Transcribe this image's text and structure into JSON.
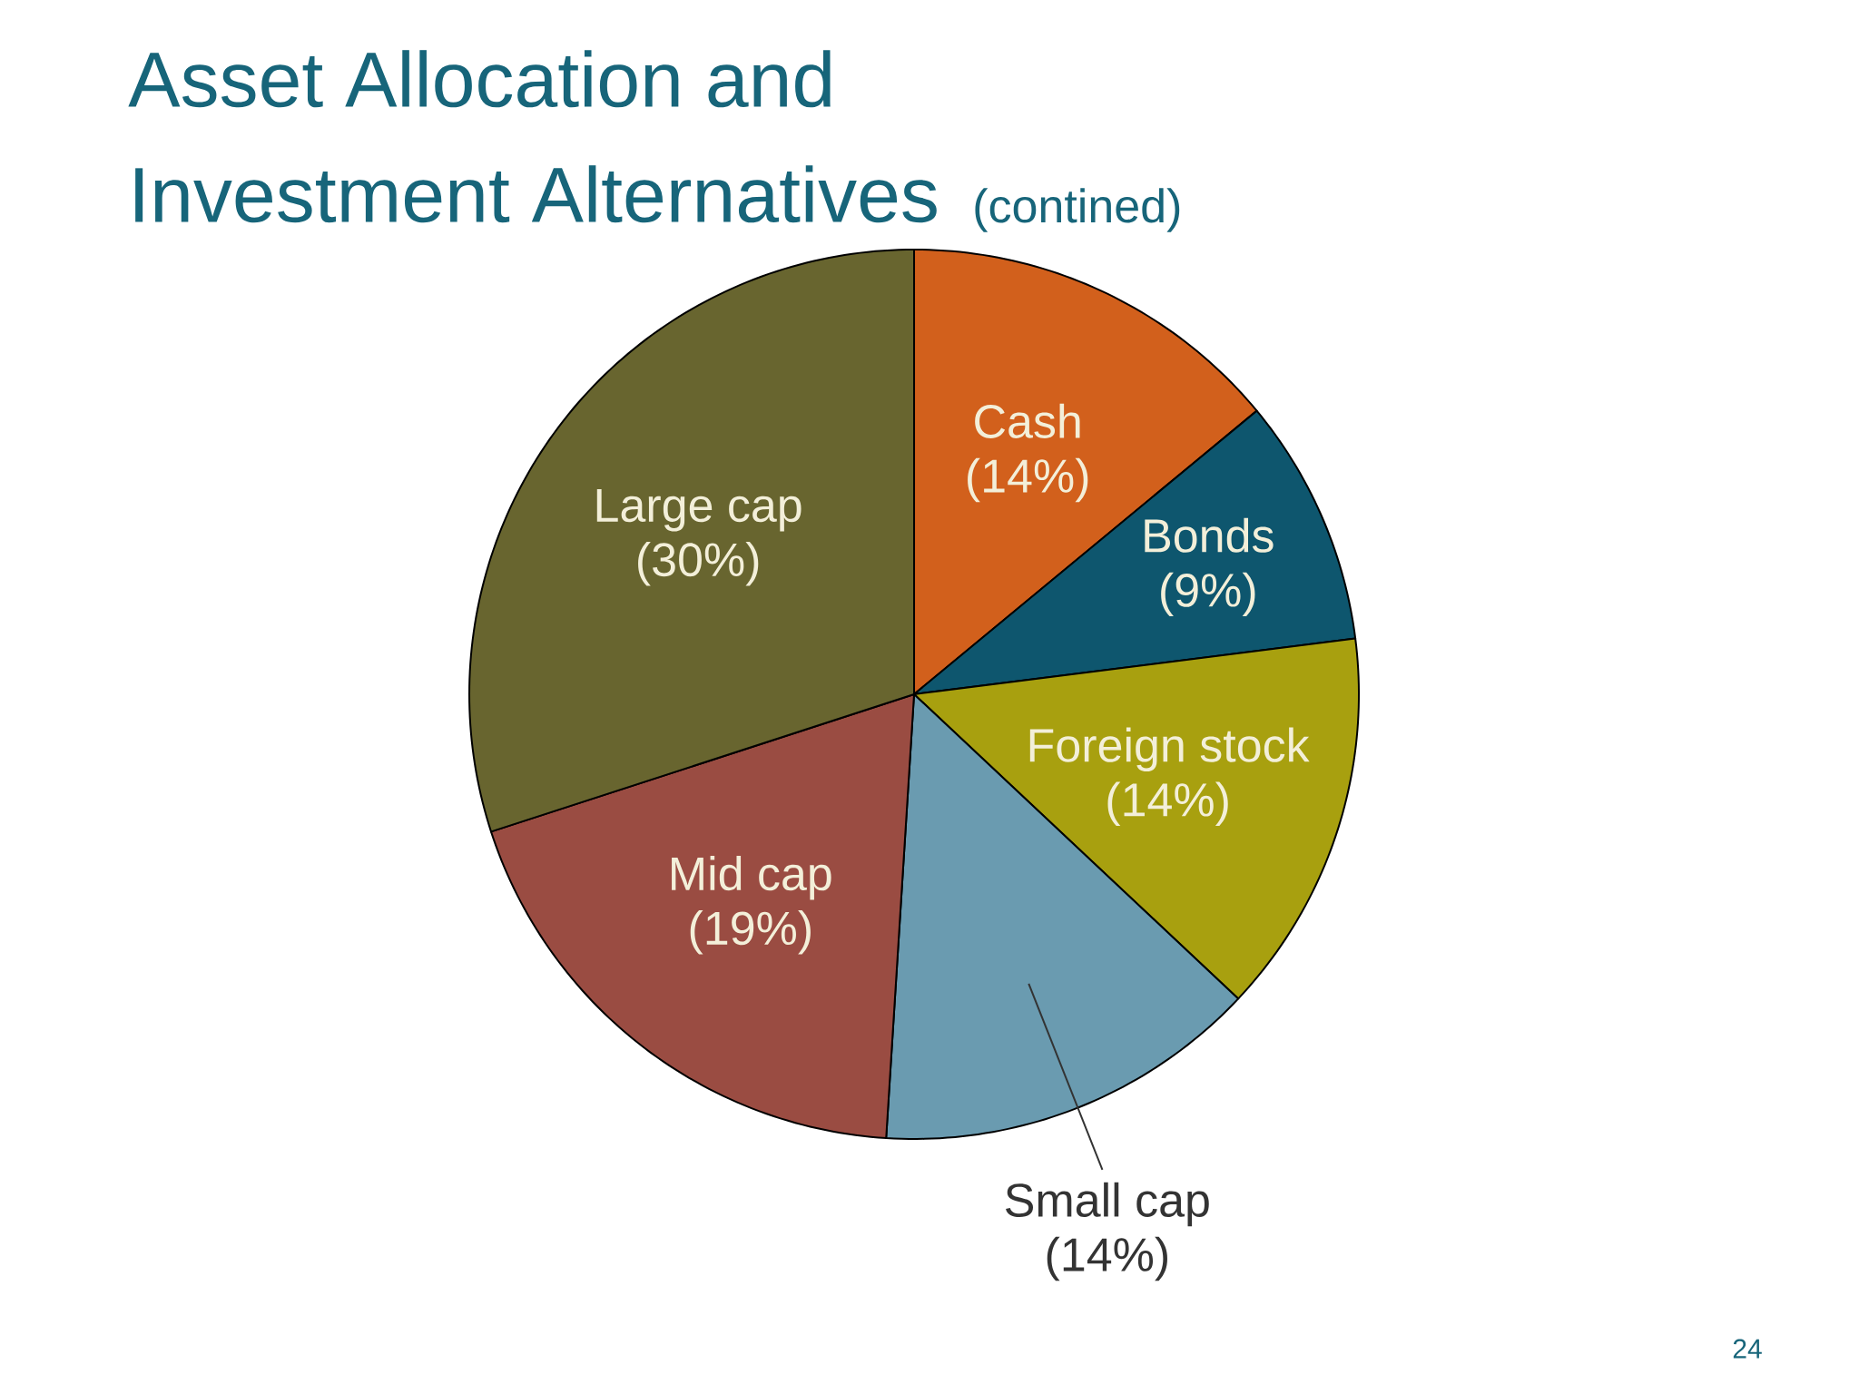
{
  "chart_data": {
    "type": "pie",
    "title": "Asset Allocation and Investment Alternatives",
    "subtitle": "(contined)",
    "categories": [
      "Cash",
      "Bonds",
      "Foreign stock",
      "Small cap",
      "Mid cap",
      "Large cap"
    ],
    "values": [
      14,
      9,
      14,
      14,
      19,
      30
    ],
    "value_labels": [
      "(14%)",
      "(9%)",
      "(14%)",
      "(14%)",
      "(19%)",
      "(30%)"
    ],
    "colors": [
      "#d2601c",
      "#0e566e",
      "#a8a00f",
      "#6a9bb0",
      "#9a4c42",
      "#68652f"
    ],
    "annotations": [
      "24"
    ]
  }
}
